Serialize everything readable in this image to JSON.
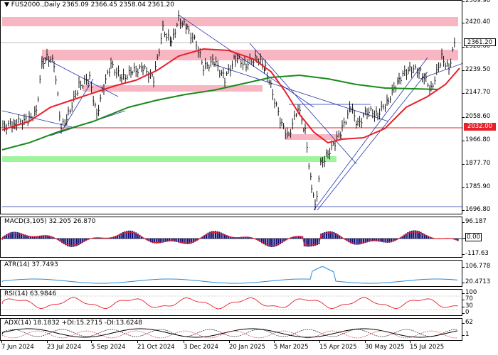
{
  "main": {
    "title": "FUS2000.,Daily  2365.09 2366.45 2358.04 2361.20",
    "current_price": "2361.20",
    "level_price": "2032.00",
    "price_ticks": [
      "2509.90",
      "2420.40",
      "2328.60",
      "2239.50",
      "2147.70",
      "2058.60",
      "1966.80",
      "1877.70",
      "1785.90",
      "1696.80"
    ],
    "colors": {
      "price_tag_bg": "#ffffff",
      "level_tag_bg": "#e8202a",
      "ma_fast": "#e8202a",
      "ma_slow": "#1a8a1a",
      "zone_red": "#f7b6c2",
      "zone_green": "#9ef59e"
    }
  },
  "macd": {
    "label": "MACD(3,105) 32.205 26.870",
    "ticks": [
      "96.187",
      "0.00",
      "-117.63"
    ]
  },
  "atr": {
    "label": "ATR(14) 37.7493",
    "ticks": [
      "106.778",
      "20.4713"
    ]
  },
  "rsi": {
    "label": "RSI(14) 63.9846",
    "ticks": [
      "100",
      "70",
      "30",
      "0"
    ]
  },
  "adx": {
    "label": "ADX(14) 18.1832 +DI:15.2715 -DI:13.6248",
    "ticks": [
      "62",
      "1"
    ]
  },
  "x_axis": [
    "7 Jun 2024",
    "23 Jul 2024",
    "5 Sep 2024",
    "21 Oct 2024",
    "3 Dec 2024",
    "20 Jan 2025",
    "5 Mar 2025",
    "15 Apr 2025",
    "30 May 2025",
    "15 Jul 2025"
  ]
}
